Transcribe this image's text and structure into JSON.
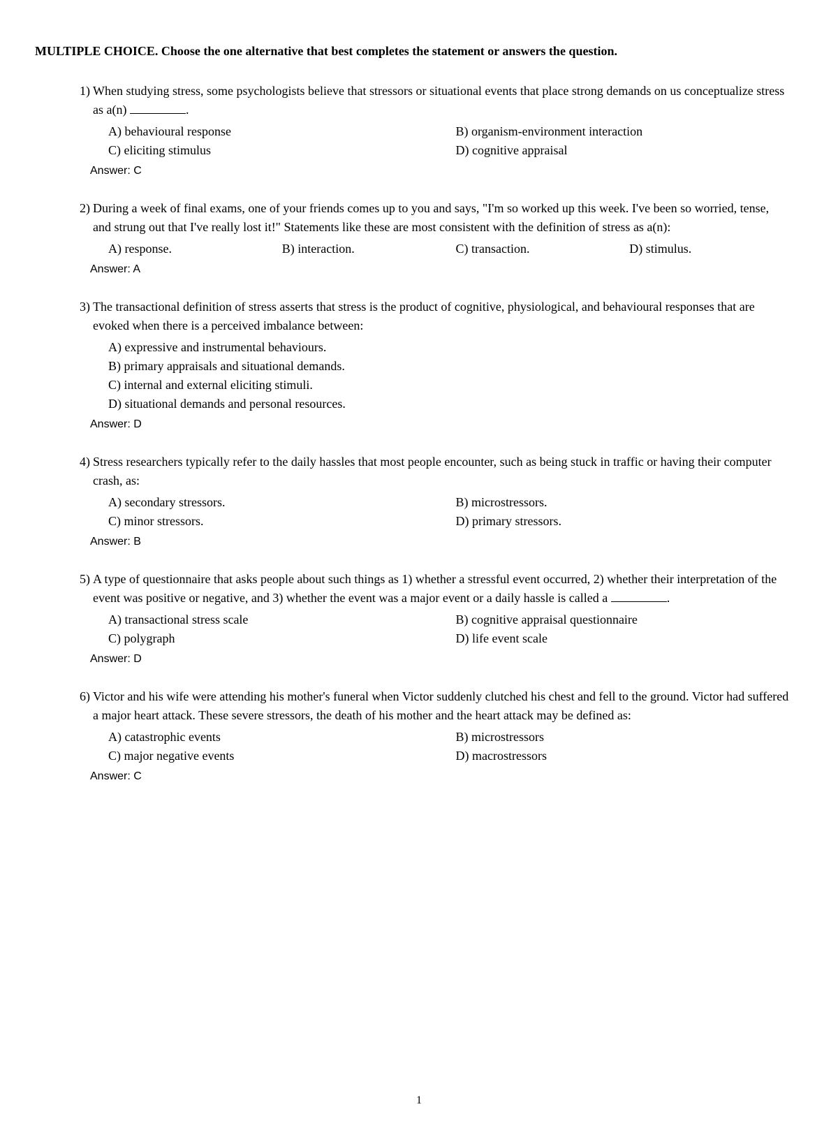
{
  "header": "MULTIPLE CHOICE.  Choose the one alternative that best completes the statement or answers the question.",
  "questions": [
    {
      "num": "1)",
      "stem_before": "When studying stress, some psychologists believe that stressors or situational events that place strong demands on us conceptualize stress as a(n) ",
      "stem_after": ".",
      "has_blank": true,
      "layout": "2col",
      "options": {
        "A": "A) behavioural response",
        "B": "B) organism-environment interaction",
        "C": "C) eliciting stimulus",
        "D": "D) cognitive appraisal"
      },
      "answer": "Answer:  C"
    },
    {
      "num": "2)",
      "stem_before": "During a week of final exams, one of your friends comes up to you and says, \"I'm so worked up this week. I've been so worried, tense, and strung out that I've really lost it!\" Statements like these are most consistent with the definition of stress as a(n):",
      "stem_after": "",
      "has_blank": false,
      "layout": "4col",
      "options": {
        "A": "A) response.",
        "B": "B) interaction.",
        "C": "C) transaction.",
        "D": "D) stimulus."
      },
      "answer": "Answer:  A"
    },
    {
      "num": "3)",
      "stem_before": "The transactional definition of stress asserts that stress is the product of cognitive, physiological, and behavioural responses that are evoked when there is a perceived imbalance between:",
      "stem_after": "",
      "has_blank": false,
      "layout": "1col",
      "options": {
        "A": "A) expressive and instrumental behaviours.",
        "B": "B) primary appraisals and situational demands.",
        "C": "C) internal and external eliciting stimuli.",
        "D": "D) situational demands and personal resources."
      },
      "answer": "Answer:  D"
    },
    {
      "num": "4)",
      "stem_before": "Stress researchers typically refer to the daily hassles that most people encounter, such as being stuck in traffic or having their computer crash, as:",
      "stem_after": "",
      "has_blank": false,
      "layout": "2col",
      "options": {
        "A": "A) secondary stressors.",
        "B": "B) microstressors.",
        "C": "C) minor stressors.",
        "D": "D) primary stressors."
      },
      "answer": "Answer:  B"
    },
    {
      "num": "5)",
      "stem_before": "A type of questionnaire that asks people about such things as 1) whether a stressful event occurred, 2) whether their interpretation of the event was positive or negative, and 3) whether the event was a major event or a daily hassle is called a ",
      "stem_after": ".",
      "has_blank": true,
      "layout": "2col",
      "options": {
        "A": "A) transactional stress scale",
        "B": "B) cognitive appraisal questionnaire",
        "C": "C) polygraph",
        "D": "D) life event scale"
      },
      "answer": "Answer:  D"
    },
    {
      "num": "6)",
      "stem_before": "Victor and his wife were attending his mother's funeral when Victor suddenly clutched his chest and fell to the ground. Victor had suffered a major heart attack. These severe stressors, the death of his mother and the heart attack may be defined as:",
      "stem_after": "",
      "has_blank": false,
      "layout": "2col",
      "options": {
        "A": "A) catastrophic events",
        "B": "B) microstressors",
        "C": "C) major negative events",
        "D": "D) macrostressors"
      },
      "answer": "Answer:  C"
    }
  ],
  "page_number": "1"
}
